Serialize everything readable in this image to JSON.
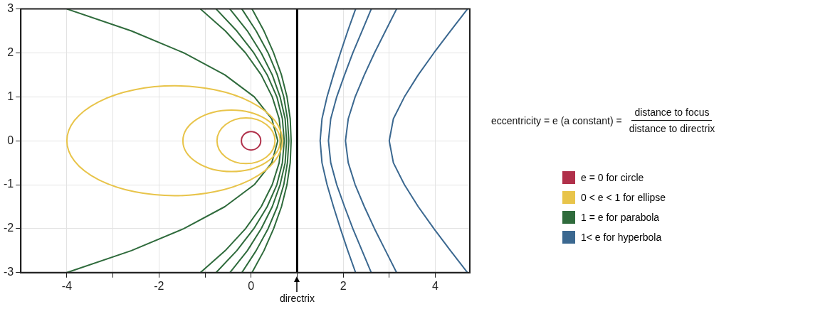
{
  "chart_data": {
    "type": "line",
    "marker": "none",
    "grid": true,
    "legend": "right",
    "xlim": [
      -5,
      4.75
    ],
    "ylim": [
      -3,
      3
    ],
    "xticks": [
      -4,
      {
        "value": -3,
        "label": null
      },
      -2,
      {
        "value": -1,
        "label": null
      },
      0,
      {
        "value": 1,
        "label": null
      },
      2,
      {
        "value": 3,
        "label": null
      },
      4
    ],
    "yticks": [
      -3,
      -2,
      -1,
      0,
      1,
      2,
      3
    ],
    "ref_lines": [
      {
        "axis": "x",
        "value": 1,
        "label": "directrix",
        "color": "#000000"
      }
    ],
    "annotations": [
      "eccentricity  =  e (a constant) =",
      "distance to focus",
      "distance to directrix",
      "e = 0 for circle",
      "0 < e < 1 for ellipse"
    ],
    "series": [
      {
        "name": "1 = e for parabola",
        "color": "#2f6b3c",
        "x": [
          -4.0,
          -2.6,
          -1.46,
          -0.57,
          0.07,
          0.45,
          0.58,
          0.45,
          0.07,
          -0.57,
          -1.46,
          -2.6,
          -4.0
        ],
        "values": [
          -3,
          -2.5,
          -2,
          -1.5,
          -1,
          -0.5,
          0,
          0.5,
          1,
          1.5,
          2,
          2.5,
          3
        ]
      },
      {
        "color": "#2f6b3c",
        "x": [
          -1.1,
          -0.56,
          -0.12,
          0.22,
          0.46,
          0.61,
          0.66,
          0.61,
          0.46,
          0.22,
          -0.12,
          -0.56,
          -1.1
        ],
        "values": [
          -3,
          -2.5,
          -2,
          -1.5,
          -1,
          -0.5,
          0,
          0.5,
          1,
          1.5,
          2,
          2.5,
          3
        ]
      },
      {
        "color": "#2f6b3c",
        "x": [
          -0.76,
          -0.31,
          0.06,
          0.35,
          0.56,
          0.68,
          0.72,
          0.68,
          0.56,
          0.35,
          0.06,
          -0.31,
          -0.76
        ],
        "values": [
          -3,
          -2.5,
          -2,
          -1.5,
          -1,
          -0.5,
          0,
          0.5,
          1,
          1.5,
          2,
          2.5,
          3
        ]
      },
      {
        "color": "#2f6b3c",
        "x": [
          -0.46,
          -0.08,
          0.22,
          0.46,
          0.63,
          0.74,
          0.77,
          0.74,
          0.63,
          0.46,
          0.22,
          -0.08,
          -0.46
        ],
        "values": [
          -3,
          -2.5,
          -2,
          -1.5,
          -1,
          -0.5,
          0,
          0.5,
          1,
          1.5,
          2,
          2.5,
          3
        ]
      },
      {
        "color": "#2f6b3c",
        "x": [
          -0.2,
          0.11,
          0.37,
          0.57,
          0.71,
          0.79,
          0.82,
          0.79,
          0.71,
          0.57,
          0.37,
          0.11,
          -0.2
        ],
        "values": [
          -3,
          -2.5,
          -2,
          -1.5,
          -1,
          -0.5,
          0,
          0.5,
          1,
          1.5,
          2,
          2.5,
          3
        ]
      },
      {
        "color": "#2f6b3c",
        "x": [
          0.02,
          0.28,
          0.49,
          0.66,
          0.78,
          0.85,
          0.87,
          0.85,
          0.78,
          0.66,
          0.49,
          0.28,
          0.02
        ],
        "values": [
          -3,
          -2.5,
          -2,
          -1.5,
          -1,
          -0.5,
          0,
          0.5,
          1,
          1.5,
          2,
          2.5,
          3
        ]
      },
      {
        "name": "1< e for hyperbola",
        "color": "#3b6890",
        "x": [
          2.27,
          2.1,
          1.94,
          1.79,
          1.65,
          1.54,
          1.5,
          1.54,
          1.65,
          1.79,
          1.94,
          2.1,
          2.27
        ],
        "values": [
          -3,
          -2.5,
          -2,
          -1.5,
          -1,
          -0.5,
          0,
          0.5,
          1,
          1.5,
          2,
          2.5,
          3
        ]
      },
      {
        "color": "#3b6890",
        "x": [
          2.61,
          2.41,
          2.21,
          2.03,
          1.86,
          1.73,
          1.68,
          1.73,
          1.86,
          2.03,
          2.21,
          2.41,
          2.61
        ],
        "values": [
          -3,
          -2.5,
          -2,
          -1.5,
          -1,
          -0.5,
          0,
          0.5,
          1,
          1.5,
          2,
          2.5,
          3
        ]
      },
      {
        "color": "#3b6890",
        "x": [
          3.16,
          2.92,
          2.68,
          2.46,
          2.26,
          2.11,
          2.05,
          2.11,
          2.26,
          2.46,
          2.68,
          2.92,
          3.16
        ],
        "values": [
          -3,
          -2.5,
          -2,
          -1.5,
          -1,
          -0.5,
          0,
          0.5,
          1,
          1.5,
          2,
          2.5,
          3
        ]
      },
      {
        "color": "#3b6890",
        "x": [
          4.7,
          4.33,
          3.97,
          3.63,
          3.33,
          3.09,
          3.0,
          3.09,
          3.33,
          3.63,
          3.97,
          4.33,
          4.7
        ],
        "values": [
          -3,
          -2.5,
          -2,
          -1.5,
          -1,
          -0.5,
          0,
          0.5,
          1,
          1.5,
          2,
          2.5,
          3
        ]
      }
    ]
  }
}
